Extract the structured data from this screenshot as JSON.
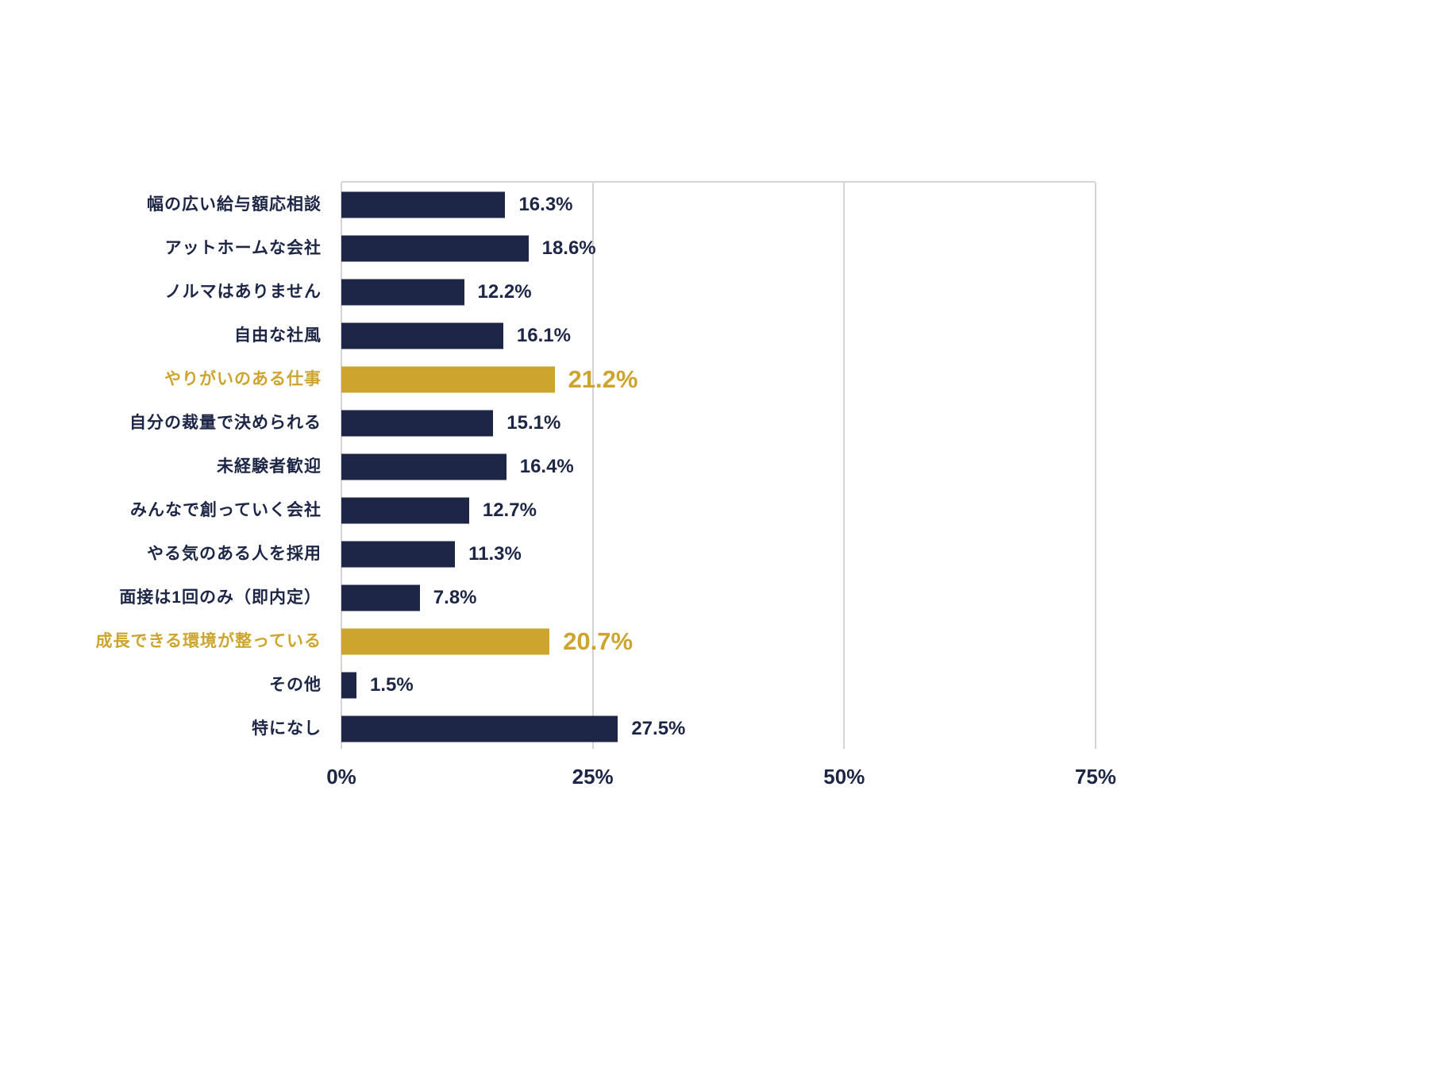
{
  "chart_data": {
    "type": "bar",
    "orientation": "horizontal",
    "title": "",
    "xlabel": "",
    "ylabel": "",
    "xlim": [
      0,
      75
    ],
    "grid": true,
    "legend": "none",
    "categories": [
      "幅の広い給与額応相談",
      "アットホームな会社",
      "ノルマはありません",
      "自由な社風",
      "やりがいのある仕事",
      "自分の裁量で決められる",
      "未経験者歓迎",
      "みんなで創っていく会社",
      "やる気のある人を採用",
      "面接は1回のみ（即内定）",
      "成長できる環境が整っている",
      "その他",
      "特になし"
    ],
    "values": [
      16.3,
      18.6,
      12.2,
      16.1,
      21.2,
      15.1,
      16.4,
      12.7,
      11.3,
      7.8,
      20.7,
      1.5,
      27.5
    ],
    "value_labels": [
      "16.3%",
      "18.6%",
      "12.2%",
      "16.1%",
      "21.2%",
      "15.1%",
      "16.4%",
      "12.7%",
      "11.3%",
      "7.8%",
      "20.7%",
      "1.5%",
      "27.5%"
    ],
    "highlighted_indexes": [
      4,
      10
    ],
    "x_ticks": [
      {
        "label": "0%",
        "value": 0
      },
      {
        "label": "25%",
        "value": 25
      },
      {
        "label": "50%",
        "value": 50
      },
      {
        "label": "75%",
        "value": 75
      }
    ],
    "colors": {
      "bar": "#1d2646",
      "highlight": "#cda52e",
      "label_text": "#1d2646",
      "highlight_text": "#cda52e",
      "gridline": "#d4d4d4",
      "background": "#ffffff"
    }
  }
}
